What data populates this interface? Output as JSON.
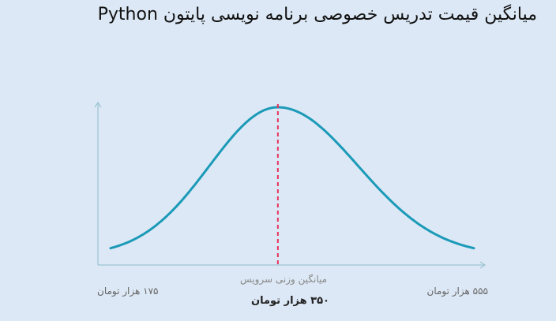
{
  "title": "میانگین قیمت تدریس خصوصی برنامه نویسی پایتون Python",
  "chart_data": {
    "type": "line",
    "curve": "normal-distribution",
    "min_label": "۱۷۵ هزار تومان",
    "max_label": "۵۵۵ هزار تومان",
    "avg_caption": "میانگین وزنی سرویس",
    "avg_label": "۳۵۰ هزار تومان",
    "min_value": 175,
    "max_value": 555,
    "mean_value": 350,
    "curve_color": "#1b9ab8",
    "mean_line_color": "#e8315b",
    "axis_color": "#9cc4d4"
  }
}
